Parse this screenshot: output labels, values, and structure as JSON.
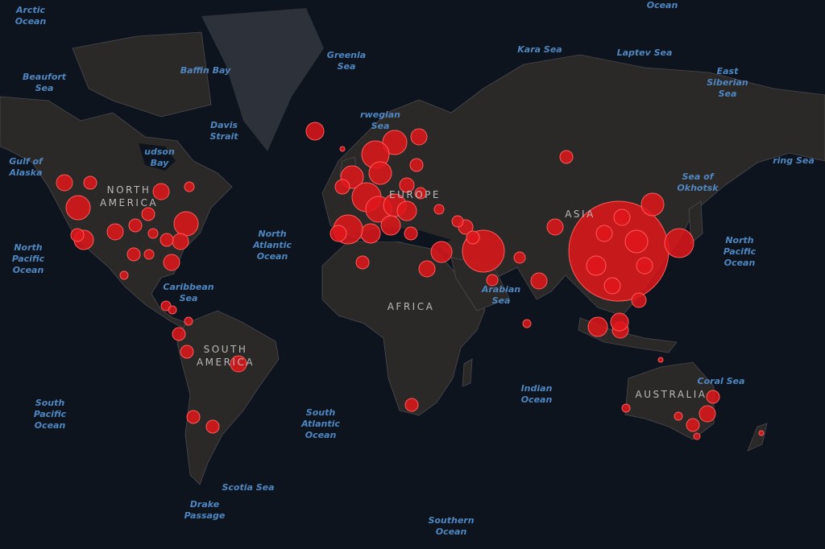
{
  "colors": {
    "ocean": "#0d141e",
    "land": "#2b2927",
    "greenland": "#2d3139",
    "border": "#55545a",
    "bubble": "#e0161b",
    "bubble_stroke": "#ff5a5a"
  },
  "continents": [
    "NORTH\nAMERICA",
    "EUROPE",
    "ASIA",
    "AFRICA",
    "SOUTH\nAMERICA",
    "AUSTRALIA"
  ],
  "water_labels": [
    "Arctic\nOcean",
    "Ocean",
    "Beaufort\nSea",
    "Baffin Bay",
    "Greenla\nSea",
    "Kara Sea",
    "Laptev Sea",
    "East\nSiberian\nSea",
    "rwegian\nSea",
    "Davis\nStrait",
    "udson\nBay",
    "Gulf of\nAlaska",
    "ring Sea",
    "Sea of\nOkhotsk",
    "North\nAtlantic\nOcean",
    "North\nPacific\nOcean",
    "North\nPacific\nOcean",
    "Caribbean\nSea",
    "Arabian\nSea",
    "Indian\nOcean",
    "Coral Sea",
    "South\nPacific\nOcean",
    "South\nAtlantic\nOcean",
    "Scotia Sea",
    "Drake\nPassage",
    "Southern\nOcean"
  ]
}
